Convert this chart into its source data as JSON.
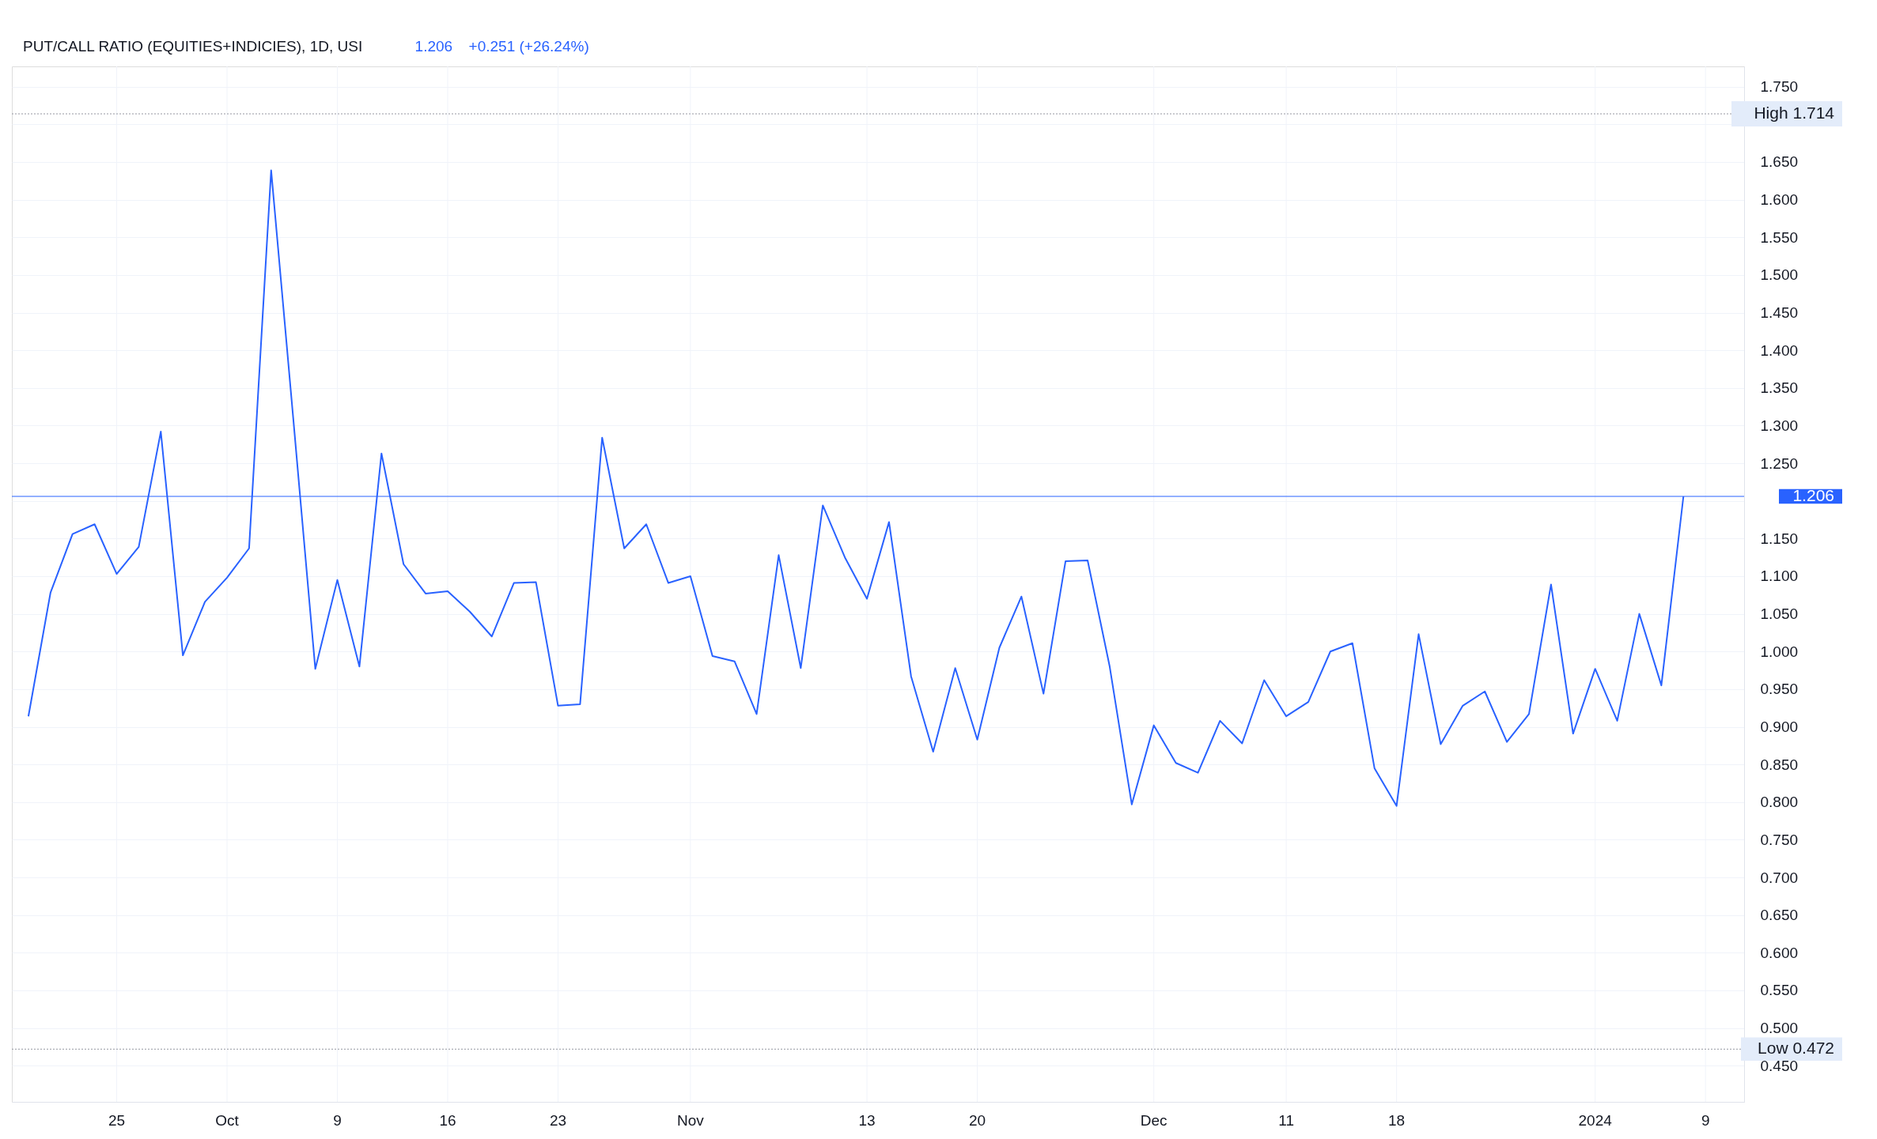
{
  "chart_data": {
    "type": "line",
    "title": "PUT/CALL RATIO (EQUITIES+INDICIES), 1D, USI",
    "annotations": [
      "1.206",
      "+0.251 (+26.24%)"
    ],
    "categories": [
      null,
      null,
      null,
      null,
      "25",
      null,
      null,
      null,
      null,
      "Oct",
      null,
      null,
      null,
      null,
      "9",
      null,
      null,
      null,
      null,
      "16",
      null,
      null,
      null,
      null,
      "23",
      null,
      null,
      null,
      null,
      null,
      "Nov",
      null,
      null,
      null,
      null,
      null,
      null,
      null,
      "13",
      null,
      null,
      null,
      null,
      "20",
      null,
      null,
      null,
      null,
      null,
      null,
      null,
      "Dec",
      null,
      null,
      null,
      null,
      null,
      "11",
      null,
      null,
      null,
      null,
      "18",
      null,
      null,
      null,
      null,
      null,
      null,
      null,
      null,
      "2024",
      null,
      null,
      null,
      null,
      "9",
      null
    ],
    "series": [
      {
        "color": "#2962ff",
        "values": [
          0.914,
          1.078,
          1.156,
          1.169,
          1.103,
          1.139,
          1.292,
          0.995,
          1.066,
          1.098,
          1.137,
          1.639,
          1.31,
          0.977,
          1.095,
          0.98,
          1.263,
          1.116,
          1.077,
          1.08,
          1.053,
          1.02,
          1.091,
          1.092,
          0.928,
          0.93,
          1.284,
          1.137,
          1.169,
          1.091,
          1.1,
          0.994,
          0.987,
          0.917,
          1.128,
          0.978,
          1.194,
          1.125,
          1.07,
          1.172,
          0.967,
          0.867,
          0.978,
          0.883,
          1.005,
          1.073,
          0.944,
          1.12,
          1.121,
          0.98,
          0.797,
          0.902,
          0.852,
          0.839,
          0.908,
          0.878,
          0.962,
          0.914,
          0.933,
          1.0,
          1.011,
          0.845,
          0.795,
          1.023,
          0.877,
          0.928,
          0.947,
          0.88,
          0.917,
          1.089,
          0.891,
          0.977,
          0.908,
          1.05,
          0.955,
          1.206,
          null,
          null
        ]
      }
    ],
    "ylim": [
      0.402,
      1.777
    ],
    "yticks": [
      {
        "value": 0.45,
        "label": "0.450"
      },
      {
        "value": 0.5,
        "label": "0.500"
      },
      {
        "value": 0.55,
        "label": "0.550"
      },
      {
        "value": 0.6,
        "label": "0.600"
      },
      {
        "value": 0.65,
        "label": "0.650"
      },
      {
        "value": 0.7,
        "label": "0.700"
      },
      {
        "value": 0.75,
        "label": "0.750"
      },
      {
        "value": 0.8,
        "label": "0.800"
      },
      {
        "value": 0.85,
        "label": "0.850"
      },
      {
        "value": 0.9,
        "label": "0.900"
      },
      {
        "value": 0.95,
        "label": "0.950"
      },
      {
        "value": 1.0,
        "label": "1.000"
      },
      {
        "value": 1.05,
        "label": "1.050"
      },
      {
        "value": 1.1,
        "label": "1.100"
      },
      {
        "value": 1.15,
        "label": "1.150"
      },
      {
        "value": 1.2,
        "label": null
      },
      {
        "value": 1.25,
        "label": "1.250"
      },
      {
        "value": 1.3,
        "label": "1.300"
      },
      {
        "value": 1.35,
        "label": "1.350"
      },
      {
        "value": 1.4,
        "label": "1.400"
      },
      {
        "value": 1.45,
        "label": "1.450"
      },
      {
        "value": 1.5,
        "label": "1.500"
      },
      {
        "value": 1.55,
        "label": "1.550"
      },
      {
        "value": 1.6,
        "label": "1.600"
      },
      {
        "value": 1.65,
        "label": "1.650"
      },
      {
        "value": 1.7,
        "label": null
      },
      {
        "value": 1.75,
        "label": "1.750"
      }
    ],
    "ref_lines": [
      {
        "axis": "y",
        "value": 1.714,
        "label": "High 1.714",
        "color": "#9598a1",
        "line_style": "dotted"
      },
      {
        "axis": "y",
        "value": 1.206,
        "label": "1.206",
        "color": "#2962ff",
        "line_style": "solid"
      },
      {
        "axis": "y",
        "value": 0.472,
        "label": "Low 0.472",
        "color": "#9598a1",
        "line_style": "dotted"
      }
    ],
    "grid": true,
    "marker": "none",
    "line_style": "solid"
  }
}
